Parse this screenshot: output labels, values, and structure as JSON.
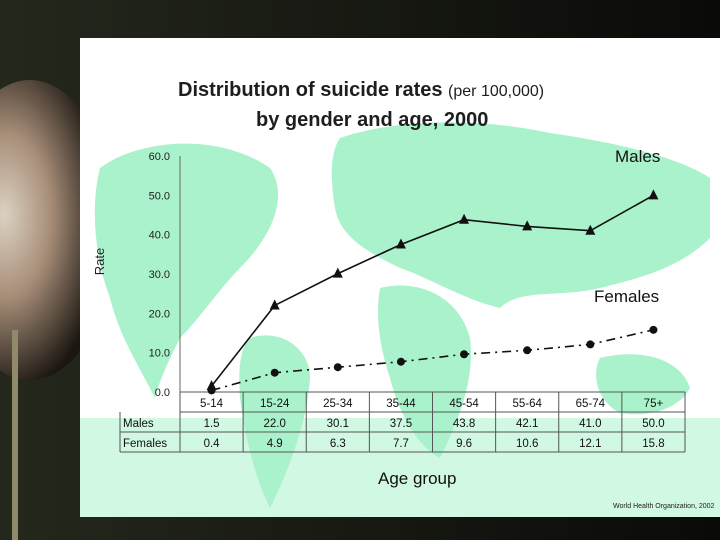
{
  "slide": {
    "title_main": "Distribution of suicide rates",
    "title_paren": "(per 100,000)",
    "title_line2": "by gender and age, 2000",
    "credit": "World Health Organization, 2002"
  },
  "chart_data": {
    "type": "line",
    "title": "Distribution of suicide rates (per 100,000) by gender and age, 2000",
    "xlabel": "Age group",
    "ylabel": "Rate",
    "ylim": [
      0,
      60
    ],
    "yticks": [
      "0.0",
      "10.0",
      "20.0",
      "30.0",
      "40.0",
      "50.0",
      "60.0"
    ],
    "categories": [
      "5-14",
      "15-24",
      "25-34",
      "35-44",
      "45-54",
      "55-64",
      "65-74",
      "75+"
    ],
    "series": [
      {
        "name": "Males",
        "values": [
          1.5,
          22.0,
          30.1,
          37.5,
          43.8,
          42.1,
          41.0,
          50.0
        ],
        "labels": [
          "1.5",
          "22.0",
          "30.1",
          "37.5",
          "43.8",
          "42.1",
          "41.0",
          "50.0"
        ]
      },
      {
        "name": "Females",
        "values": [
          0.4,
          4.9,
          6.3,
          7.7,
          9.6,
          10.6,
          12.1,
          15.8
        ],
        "labels": [
          "0.4",
          "4.9",
          "6.3",
          "7.7",
          "9.6",
          "10.6",
          "12.1",
          "15.8"
        ]
      }
    ],
    "grid": false,
    "legend": "inline labels"
  }
}
